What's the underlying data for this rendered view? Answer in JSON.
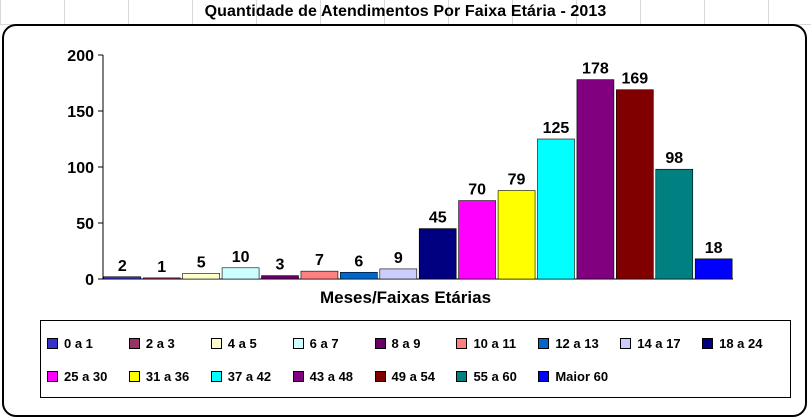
{
  "chart_data": {
    "type": "bar",
    "title": "Quantidade de Atendimentos Por Faixa Etária - 2013",
    "xlabel": "Meses/Faixas Etárias",
    "ylabel": "",
    "ylim": [
      0,
      200
    ],
    "yticks": [
      0,
      50,
      100,
      150,
      200
    ],
    "grid": false,
    "legend_position": "bottom",
    "categories": [
      "0 a 1",
      "2 a 3",
      "4 a 5",
      "6 a 7",
      "8 a 9",
      "10 a 11",
      "12 a 13",
      "14 a 17",
      "18 a 24",
      "25 a 30",
      "31 a 36",
      "37 a 42",
      "43 a 48",
      "49 a 54",
      "55 a 60",
      "Maior 60"
    ],
    "values": [
      2,
      1,
      5,
      10,
      3,
      7,
      6,
      9,
      45,
      70,
      79,
      125,
      178,
      169,
      98,
      18
    ],
    "colors": [
      "#3333cc",
      "#993366",
      "#ffffcc",
      "#ccffff",
      "#660066",
      "#ff8080",
      "#0066cc",
      "#ccccff",
      "#000080",
      "#ff00ff",
      "#ffff00",
      "#00ffff",
      "#800080",
      "#800000",
      "#008080",
      "#0000ff"
    ]
  }
}
